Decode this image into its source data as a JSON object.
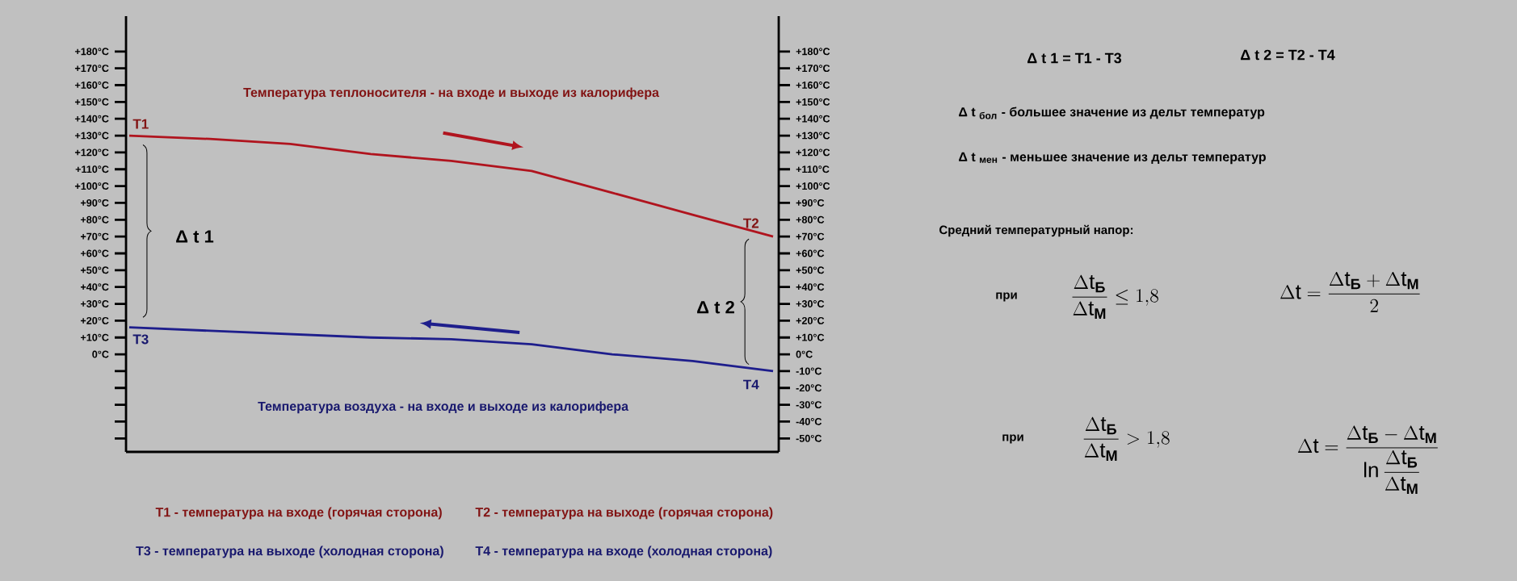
{
  "chart_data": {
    "type": "line",
    "categories": [
      null,
      null,
      null,
      null,
      null,
      null,
      null,
      null,
      null
    ],
    "series": [
      {
        "color": "#b0141e",
        "values": [
          130,
          128,
          125,
          119,
          115,
          109,
          96,
          83,
          70
        ]
      },
      {
        "color": "#1e1e8c",
        "values": [
          16,
          14,
          12,
          10,
          9,
          6,
          0,
          -4,
          -10
        ]
      }
    ],
    "ylim": [
      -58,
      201
    ],
    "yticks": [
      {
        "value": 180,
        "label": "+180°C"
      },
      {
        "value": 170,
        "label": "+170°C"
      },
      {
        "value": 160,
        "label": "+160°C"
      },
      {
        "value": 150,
        "label": "+150°C"
      },
      {
        "value": 140,
        "label": "+140°C"
      },
      {
        "value": 130,
        "label": "+130°C"
      },
      {
        "value": 120,
        "label": "+120°C"
      },
      {
        "value": 110,
        "label": "+110°C"
      },
      {
        "value": 100,
        "label": "+100°C"
      },
      {
        "value": 90,
        "label": "+90°C"
      },
      {
        "value": 80,
        "label": "+80°C"
      },
      {
        "value": 70,
        "label": "+70°C"
      },
      {
        "value": 60,
        "label": "+60°C"
      },
      {
        "value": 50,
        "label": "+50°C"
      },
      {
        "value": 40,
        "label": "+40°C"
      },
      {
        "value": 30,
        "label": "+30°C"
      },
      {
        "value": 20,
        "label": "+20°C"
      },
      {
        "value": 10,
        "label": "+10°C"
      },
      {
        "value": 0,
        "label": "0°C"
      },
      {
        "value": -10,
        "label": null
      },
      {
        "value": -20,
        "label": null
      },
      {
        "value": -30,
        "label": null
      },
      {
        "value": -40,
        "label": null
      },
      {
        "value": -50,
        "label": null
      }
    ],
    "y2lim": [
      -58,
      201
    ],
    "y2ticks": [
      {
        "value": 180,
        "label": "+180°C"
      },
      {
        "value": 170,
        "label": "+170°C"
      },
      {
        "value": 160,
        "label": "+160°C"
      },
      {
        "value": 150,
        "label": "+150°C"
      },
      {
        "value": 140,
        "label": "+140°C"
      },
      {
        "value": 130,
        "label": "+130°C"
      },
      {
        "value": 120,
        "label": "+120°C"
      },
      {
        "value": 110,
        "label": "+110°C"
      },
      {
        "value": 100,
        "label": "+100°C"
      },
      {
        "value": 90,
        "label": "+90°C"
      },
      {
        "value": 80,
        "label": "+80°C"
      },
      {
        "value": 70,
        "label": "+70°C"
      },
      {
        "value": 60,
        "label": "+60°C"
      },
      {
        "value": 50,
        "label": "+50°C"
      },
      {
        "value": 40,
        "label": "+40°C"
      },
      {
        "value": 30,
        "label": "+30°C"
      },
      {
        "value": 20,
        "label": "+20°C"
      },
      {
        "value": 10,
        "label": "+10°C"
      },
      {
        "value": 0,
        "label": "0°C"
      },
      {
        "value": -10,
        "label": "-10°C"
      },
      {
        "value": -20,
        "label": "-20°C"
      },
      {
        "value": -30,
        "label": "-30°C"
      },
      {
        "value": -40,
        "label": "-40°C"
      },
      {
        "value": -50,
        "label": "-50°C"
      }
    ],
    "annotations": [
      "Температура теплоносителя - на входе и выходе из калорифера",
      "Температура воздуха - на входе и выходе из калорифера",
      {
        "text": "T1",
        "y": 130
      },
      {
        "text": "T2",
        "y": 70
      },
      {
        "text": "T3",
        "y": 16
      },
      {
        "text": "T4",
        "y": -10
      },
      "Δ t 1",
      "Δ t 2",
      "Δ t 1 = T1 - T3",
      "Δ t 2 = T2 - T4",
      "Δ t $_{бол}$  - большее значение из дельт температур",
      "Δ t $_{мен}$  - меньшее значение из дельт температур",
      "Средний температурный напор:",
      "при",
      "\\frac{\\Delta\\mathrm{t}_{\\text{Б}}}{\\Delta\\mathrm{t}_{\\text{М}}}\\leq 1{,}8",
      "\\Delta\\mathrm{t}=\\frac{\\Delta\\mathrm{t}_{\\text{Б}}+\\Delta\\mathrm{t}_{\\text{М}}}{2}",
      "при",
      "\\frac{\\Delta\\mathrm{t}_{\\text{Б}}}{\\Delta\\mathrm{t}_{\\text{М}}}>1{,}8",
      "\\Delta\\mathrm{t}=\\frac{\\Delta\\mathrm{t}_{\\text{Б}}-\\Delta\\mathrm{t}_{\\text{М}}}{\\ln\\dfrac{\\Delta\\mathrm{t}_{\\text{Б}}}{\\Delta\\mathrm{t}_{\\text{М}}}}",
      "T1 - температура на входе (горячая сторона)",
      "T2 - температура на выходе (горячая сторона)",
      "T3 - температура на выходе (холодная сторона)",
      "T4 - температура на входе (холодная сторона)"
    ]
  }
}
